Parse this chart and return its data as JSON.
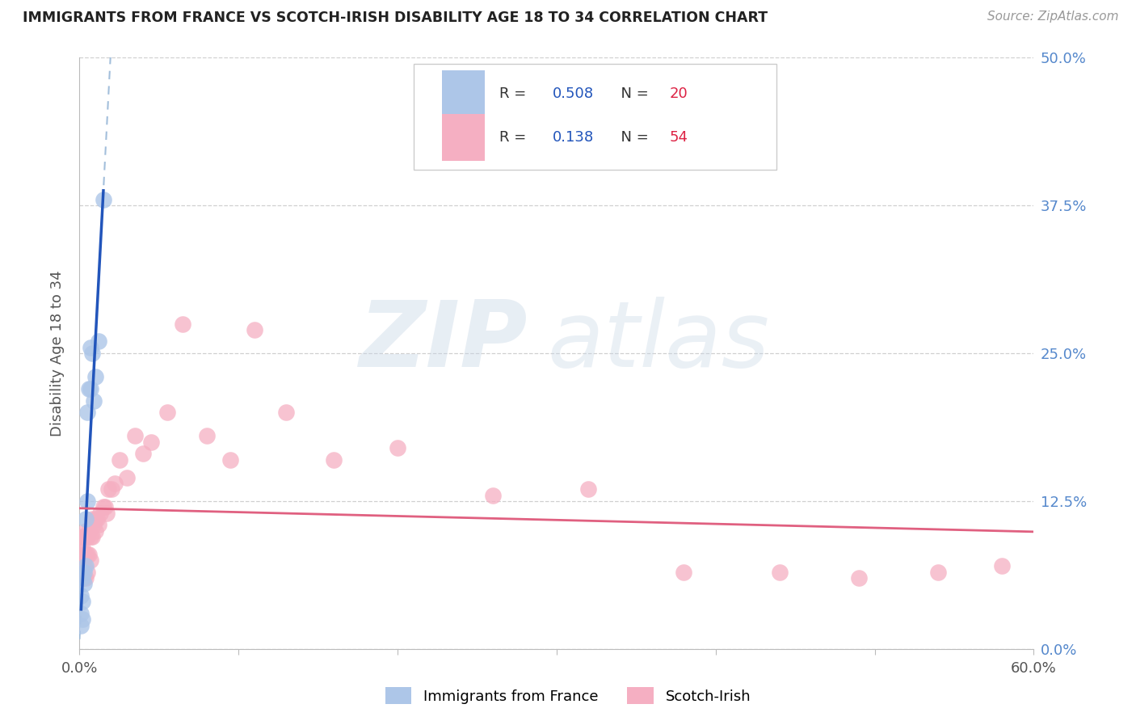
{
  "title": "IMMIGRANTS FROM FRANCE VS SCOTCH-IRISH DISABILITY AGE 18 TO 34 CORRELATION CHART",
  "source": "Source: ZipAtlas.com",
  "ylabel": "Disability Age 18 to 34",
  "xlim": [
    0.0,
    0.6
  ],
  "ylim": [
    0.0,
    0.5
  ],
  "france_R": 0.508,
  "france_N": 20,
  "scotch_R": 0.138,
  "scotch_N": 54,
  "france_color": "#adc6e8",
  "scotch_color": "#f5afc2",
  "france_line_color": "#2255bb",
  "scotch_line_color": "#e06080",
  "france_dashed_color": "#99b8d8",
  "legend_R_color": "#2255bb",
  "legend_N_color": "#dd2244",
  "watermark_zip": "ZIP",
  "watermark_atlas": "atlas",
  "france_x": [
    0.001,
    0.001,
    0.001,
    0.002,
    0.002,
    0.002,
    0.003,
    0.003,
    0.004,
    0.004,
    0.005,
    0.005,
    0.006,
    0.007,
    0.007,
    0.008,
    0.009,
    0.01,
    0.012,
    0.015
  ],
  "france_y": [
    0.02,
    0.03,
    0.045,
    0.025,
    0.04,
    0.06,
    0.055,
    0.065,
    0.07,
    0.11,
    0.125,
    0.2,
    0.22,
    0.22,
    0.255,
    0.25,
    0.21,
    0.23,
    0.26,
    0.38
  ],
  "scotch_x": [
    0.001,
    0.001,
    0.002,
    0.002,
    0.002,
    0.003,
    0.003,
    0.003,
    0.003,
    0.004,
    0.004,
    0.004,
    0.004,
    0.005,
    0.005,
    0.005,
    0.006,
    0.006,
    0.007,
    0.007,
    0.008,
    0.008,
    0.009,
    0.01,
    0.01,
    0.011,
    0.012,
    0.013,
    0.015,
    0.016,
    0.017,
    0.018,
    0.02,
    0.022,
    0.025,
    0.03,
    0.035,
    0.04,
    0.045,
    0.055,
    0.065,
    0.08,
    0.095,
    0.11,
    0.13,
    0.16,
    0.2,
    0.26,
    0.32,
    0.38,
    0.44,
    0.49,
    0.54,
    0.58
  ],
  "scotch_y": [
    0.065,
    0.09,
    0.07,
    0.085,
    0.095,
    0.06,
    0.07,
    0.08,
    0.095,
    0.06,
    0.08,
    0.095,
    0.1,
    0.065,
    0.08,
    0.095,
    0.08,
    0.1,
    0.075,
    0.095,
    0.095,
    0.11,
    0.105,
    0.1,
    0.11,
    0.11,
    0.105,
    0.115,
    0.12,
    0.12,
    0.115,
    0.135,
    0.135,
    0.14,
    0.16,
    0.145,
    0.18,
    0.165,
    0.175,
    0.2,
    0.275,
    0.18,
    0.16,
    0.27,
    0.2,
    0.16,
    0.17,
    0.13,
    0.135,
    0.065,
    0.065,
    0.06,
    0.065,
    0.07
  ]
}
